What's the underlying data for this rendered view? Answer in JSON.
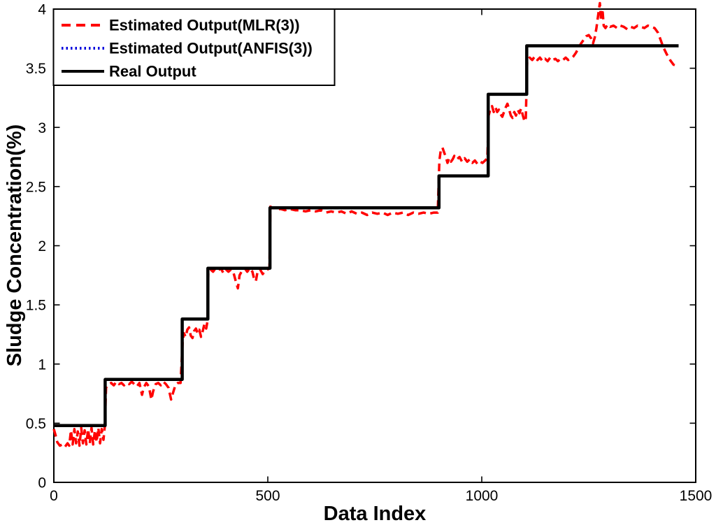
{
  "figure": {
    "background": "#ffffff"
  },
  "chart_data": {
    "type": "line",
    "title": "",
    "xlabel": "Data Index",
    "ylabel": "Sludge Concentration(%)",
    "xlim": [
      0,
      1500
    ],
    "ylim": [
      0,
      4
    ],
    "xticks": [
      0,
      500,
      1000,
      1500
    ],
    "yticks": [
      0,
      0.5,
      1,
      1.5,
      2,
      2.5,
      3,
      3.5,
      4
    ],
    "grid": false,
    "box": true,
    "legend_position": "top-left",
    "axis_color": "#000000",
    "series": [
      {
        "id": "mlr-estimate",
        "name": "Estimated Output(MLR(3))",
        "color": "#ff0000",
        "style": "dashed",
        "width": 3.5,
        "points": [
          [
            0,
            0.45
          ],
          [
            4,
            0.4
          ],
          [
            8,
            0.34
          ],
          [
            14,
            0.31
          ],
          [
            20,
            0.32
          ],
          [
            26,
            0.3
          ],
          [
            32,
            0.33
          ],
          [
            36,
            0.31
          ],
          [
            40,
            0.44
          ],
          [
            44,
            0.32
          ],
          [
            48,
            0.45
          ],
          [
            52,
            0.33
          ],
          [
            56,
            0.43
          ],
          [
            60,
            0.31
          ],
          [
            64,
            0.46
          ],
          [
            68,
            0.33
          ],
          [
            72,
            0.44
          ],
          [
            76,
            0.32
          ],
          [
            80,
            0.45
          ],
          [
            84,
            0.33
          ],
          [
            88,
            0.46
          ],
          [
            92,
            0.32
          ],
          [
            96,
            0.44
          ],
          [
            100,
            0.34
          ],
          [
            104,
            0.46
          ],
          [
            108,
            0.33
          ],
          [
            112,
            0.45
          ],
          [
            116,
            0.36
          ],
          [
            119,
            0.47
          ],
          [
            122,
            0.8
          ],
          [
            128,
            0.83
          ],
          [
            134,
            0.84
          ],
          [
            140,
            0.82
          ],
          [
            146,
            0.85
          ],
          [
            152,
            0.83
          ],
          [
            158,
            0.84
          ],
          [
            164,
            0.82
          ],
          [
            170,
            0.84
          ],
          [
            176,
            0.83
          ],
          [
            182,
            0.85
          ],
          [
            188,
            0.83
          ],
          [
            194,
            0.81
          ],
          [
            200,
            0.84
          ],
          [
            206,
            0.74
          ],
          [
            210,
            0.8
          ],
          [
            216,
            0.84
          ],
          [
            222,
            0.81
          ],
          [
            228,
            0.7
          ],
          [
            232,
            0.77
          ],
          [
            238,
            0.83
          ],
          [
            244,
            0.84
          ],
          [
            250,
            0.82
          ],
          [
            256,
            0.85
          ],
          [
            262,
            0.83
          ],
          [
            268,
            0.8
          ],
          [
            274,
            0.7
          ],
          [
            278,
            0.75
          ],
          [
            284,
            0.82
          ],
          [
            290,
            0.84
          ],
          [
            296,
            0.84
          ],
          [
            301,
            1.18
          ],
          [
            304,
            1.26
          ],
          [
            308,
            1.23
          ],
          [
            312,
            1.29
          ],
          [
            316,
            1.31
          ],
          [
            320,
            1.24
          ],
          [
            324,
            1.22
          ],
          [
            328,
            1.28
          ],
          [
            332,
            1.3
          ],
          [
            336,
            1.26
          ],
          [
            340,
            1.29
          ],
          [
            344,
            1.23
          ],
          [
            348,
            1.28
          ],
          [
            352,
            1.34
          ],
          [
            356,
            1.3
          ],
          [
            359,
            1.36
          ],
          [
            361,
            1.77
          ],
          [
            366,
            1.8
          ],
          [
            372,
            1.78
          ],
          [
            378,
            1.81
          ],
          [
            384,
            1.79
          ],
          [
            390,
            1.81
          ],
          [
            396,
            1.77
          ],
          [
            402,
            1.8
          ],
          [
            408,
            1.78
          ],
          [
            414,
            1.8
          ],
          [
            420,
            1.77
          ],
          [
            426,
            1.69
          ],
          [
            430,
            1.64
          ],
          [
            434,
            1.75
          ],
          [
            440,
            1.79
          ],
          [
            446,
            1.81
          ],
          [
            452,
            1.78
          ],
          [
            458,
            1.81
          ],
          [
            464,
            1.78
          ],
          [
            468,
            1.72
          ],
          [
            472,
            1.7
          ],
          [
            476,
            1.78
          ],
          [
            482,
            1.8
          ],
          [
            488,
            1.76
          ],
          [
            494,
            1.79
          ],
          [
            500,
            1.8
          ],
          [
            504,
            1.81
          ],
          [
            506,
            2.33
          ],
          [
            512,
            2.32
          ],
          [
            520,
            2.31
          ],
          [
            530,
            2.31
          ],
          [
            540,
            2.3
          ],
          [
            552,
            2.31
          ],
          [
            564,
            2.3
          ],
          [
            576,
            2.3
          ],
          [
            588,
            2.29
          ],
          [
            600,
            2.3
          ],
          [
            612,
            2.29
          ],
          [
            624,
            2.3
          ],
          [
            636,
            2.28
          ],
          [
            648,
            2.29
          ],
          [
            660,
            2.28
          ],
          [
            672,
            2.29
          ],
          [
            684,
            2.27
          ],
          [
            696,
            2.29
          ],
          [
            708,
            2.27
          ],
          [
            720,
            2.28
          ],
          [
            732,
            2.26
          ],
          [
            744,
            2.28
          ],
          [
            756,
            2.27
          ],
          [
            768,
            2.28
          ],
          [
            780,
            2.26
          ],
          [
            792,
            2.28
          ],
          [
            804,
            2.27
          ],
          [
            816,
            2.28
          ],
          [
            828,
            2.26
          ],
          [
            840,
            2.28
          ],
          [
            852,
            2.27
          ],
          [
            864,
            2.28
          ],
          [
            876,
            2.27
          ],
          [
            888,
            2.28
          ],
          [
            897,
            2.28
          ],
          [
            901,
            2.72
          ],
          [
            904,
            2.8
          ],
          [
            908,
            2.83
          ],
          [
            912,
            2.79
          ],
          [
            916,
            2.75
          ],
          [
            920,
            2.7
          ],
          [
            924,
            2.74
          ],
          [
            928,
            2.71
          ],
          [
            932,
            2.73
          ],
          [
            936,
            2.76
          ],
          [
            942,
            2.73
          ],
          [
            948,
            2.75
          ],
          [
            954,
            2.71
          ],
          [
            960,
            2.74
          ],
          [
            966,
            2.71
          ],
          [
            972,
            2.73
          ],
          [
            978,
            2.7
          ],
          [
            984,
            2.72
          ],
          [
            990,
            2.69
          ],
          [
            996,
            2.71
          ],
          [
            1002,
            2.7
          ],
          [
            1008,
            2.72
          ],
          [
            1013,
            2.74
          ],
          [
            1016,
            3.1
          ],
          [
            1020,
            3.15
          ],
          [
            1024,
            3.18
          ],
          [
            1028,
            3.13
          ],
          [
            1032,
            3.17
          ],
          [
            1036,
            3.13
          ],
          [
            1040,
            3.15
          ],
          [
            1044,
            3.11
          ],
          [
            1048,
            3.09
          ],
          [
            1052,
            3.13
          ],
          [
            1056,
            3.17
          ],
          [
            1060,
            3.2
          ],
          [
            1064,
            3.15
          ],
          [
            1068,
            3.1
          ],
          [
            1072,
            3.08
          ],
          [
            1076,
            3.13
          ],
          [
            1080,
            3.1
          ],
          [
            1084,
            3.15
          ],
          [
            1088,
            3.12
          ],
          [
            1092,
            3.16
          ],
          [
            1096,
            3.1
          ],
          [
            1100,
            3.05
          ],
          [
            1103,
            3.08
          ],
          [
            1106,
            3.55
          ],
          [
            1112,
            3.59
          ],
          [
            1118,
            3.57
          ],
          [
            1124,
            3.6
          ],
          [
            1130,
            3.57
          ],
          [
            1136,
            3.59
          ],
          [
            1142,
            3.56
          ],
          [
            1148,
            3.58
          ],
          [
            1154,
            3.56
          ],
          [
            1160,
            3.59
          ],
          [
            1166,
            3.57
          ],
          [
            1172,
            3.58
          ],
          [
            1178,
            3.56
          ],
          [
            1184,
            3.58
          ],
          [
            1190,
            3.57
          ],
          [
            1196,
            3.59
          ],
          [
            1202,
            3.57
          ],
          [
            1208,
            3.58
          ],
          [
            1214,
            3.6
          ],
          [
            1220,
            3.63
          ],
          [
            1226,
            3.67
          ],
          [
            1232,
            3.71
          ],
          [
            1238,
            3.74
          ],
          [
            1244,
            3.77
          ],
          [
            1250,
            3.78
          ],
          [
            1256,
            3.75
          ],
          [
            1260,
            3.71
          ],
          [
            1264,
            3.76
          ],
          [
            1268,
            3.84
          ],
          [
            1272,
            3.95
          ],
          [
            1276,
            4.05
          ],
          [
            1279,
            3.9
          ],
          [
            1282,
            4.0
          ],
          [
            1285,
            3.86
          ],
          [
            1289,
            3.84
          ],
          [
            1294,
            3.87
          ],
          [
            1300,
            3.85
          ],
          [
            1308,
            3.86
          ],
          [
            1316,
            3.84
          ],
          [
            1324,
            3.86
          ],
          [
            1332,
            3.85
          ],
          [
            1340,
            3.83
          ],
          [
            1348,
            3.85
          ],
          [
            1356,
            3.84
          ],
          [
            1364,
            3.86
          ],
          [
            1372,
            3.85
          ],
          [
            1380,
            3.84
          ],
          [
            1388,
            3.86
          ],
          [
            1396,
            3.85
          ],
          [
            1404,
            3.84
          ],
          [
            1412,
            3.8
          ],
          [
            1418,
            3.74
          ],
          [
            1424,
            3.68
          ],
          [
            1432,
            3.62
          ],
          [
            1440,
            3.57
          ],
          [
            1448,
            3.53
          ],
          [
            1456,
            3.52
          ]
        ]
      },
      {
        "id": "anfis-estimate",
        "name": "Estimated Output(ANFIS(3))",
        "color": "#0000dd",
        "style": "dotted",
        "width": 3,
        "steps": [
          [
            0,
            0.48
          ],
          [
            120,
            0.87
          ],
          [
            300,
            1.38
          ],
          [
            360,
            1.81
          ],
          [
            505,
            2.32
          ],
          [
            900,
            2.59
          ],
          [
            1015,
            3.28
          ],
          [
            1105,
            3.69
          ]
        ],
        "end_x": 1460
      },
      {
        "id": "real-output",
        "name": "Real Output",
        "color": "#000000",
        "style": "solid",
        "width": 4.5,
        "steps": [
          [
            0,
            0.48
          ],
          [
            120,
            0.87
          ],
          [
            300,
            1.38
          ],
          [
            360,
            1.81
          ],
          [
            505,
            2.32
          ],
          [
            900,
            2.59
          ],
          [
            1015,
            3.28
          ],
          [
            1105,
            3.69
          ]
        ],
        "end_x": 1460
      }
    ]
  }
}
